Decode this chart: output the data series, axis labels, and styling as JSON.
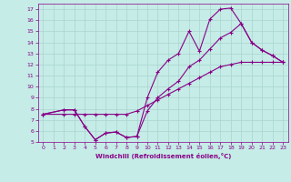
{
  "xlabel": "Windchill (Refroidissement éolien,°C)",
  "background_color": "#c5ece6",
  "grid_color": "#aad4ce",
  "line_color": "#880088",
  "xlim": [
    -0.5,
    23.5
  ],
  "ylim": [
    5,
    17.5
  ],
  "xticks": [
    0,
    1,
    2,
    3,
    4,
    5,
    6,
    7,
    8,
    9,
    10,
    11,
    12,
    13,
    14,
    15,
    16,
    17,
    18,
    19,
    20,
    21,
    22,
    23
  ],
  "yticks": [
    5,
    6,
    7,
    8,
    9,
    10,
    11,
    12,
    13,
    14,
    15,
    16,
    17
  ],
  "line1_x": [
    0,
    2,
    3,
    4,
    5,
    6,
    7,
    8,
    9,
    10,
    11,
    12,
    13,
    14,
    15,
    16,
    17,
    18,
    19,
    20,
    21,
    22,
    23
  ],
  "line1_y": [
    7.5,
    7.9,
    7.9,
    6.4,
    5.2,
    5.8,
    5.9,
    5.4,
    5.5,
    7.8,
    9.0,
    9.8,
    10.5,
    11.8,
    12.4,
    13.4,
    14.4,
    14.9,
    15.7,
    14.0,
    13.3,
    12.8,
    12.2
  ],
  "line2_x": [
    0,
    2,
    3,
    4,
    5,
    6,
    7,
    8,
    9,
    10,
    11,
    12,
    13,
    14,
    15,
    16,
    17,
    18,
    19,
    20,
    21,
    22,
    23
  ],
  "line2_y": [
    7.5,
    7.9,
    7.9,
    6.4,
    5.2,
    5.8,
    5.9,
    5.4,
    5.5,
    9.0,
    11.3,
    12.4,
    13.0,
    15.0,
    13.2,
    16.1,
    17.0,
    17.1,
    15.7,
    14.0,
    13.3,
    12.8,
    12.2
  ],
  "line3_x": [
    0,
    2,
    3,
    4,
    5,
    6,
    7,
    8,
    9,
    10,
    11,
    12,
    13,
    14,
    15,
    16,
    17,
    18,
    19,
    20,
    21,
    22,
    23
  ],
  "line3_y": [
    7.5,
    7.5,
    7.5,
    7.5,
    7.5,
    7.5,
    7.5,
    7.5,
    7.8,
    8.3,
    8.8,
    9.3,
    9.8,
    10.3,
    10.8,
    11.3,
    11.8,
    12.0,
    12.2,
    12.2,
    12.2,
    12.2,
    12.2
  ]
}
